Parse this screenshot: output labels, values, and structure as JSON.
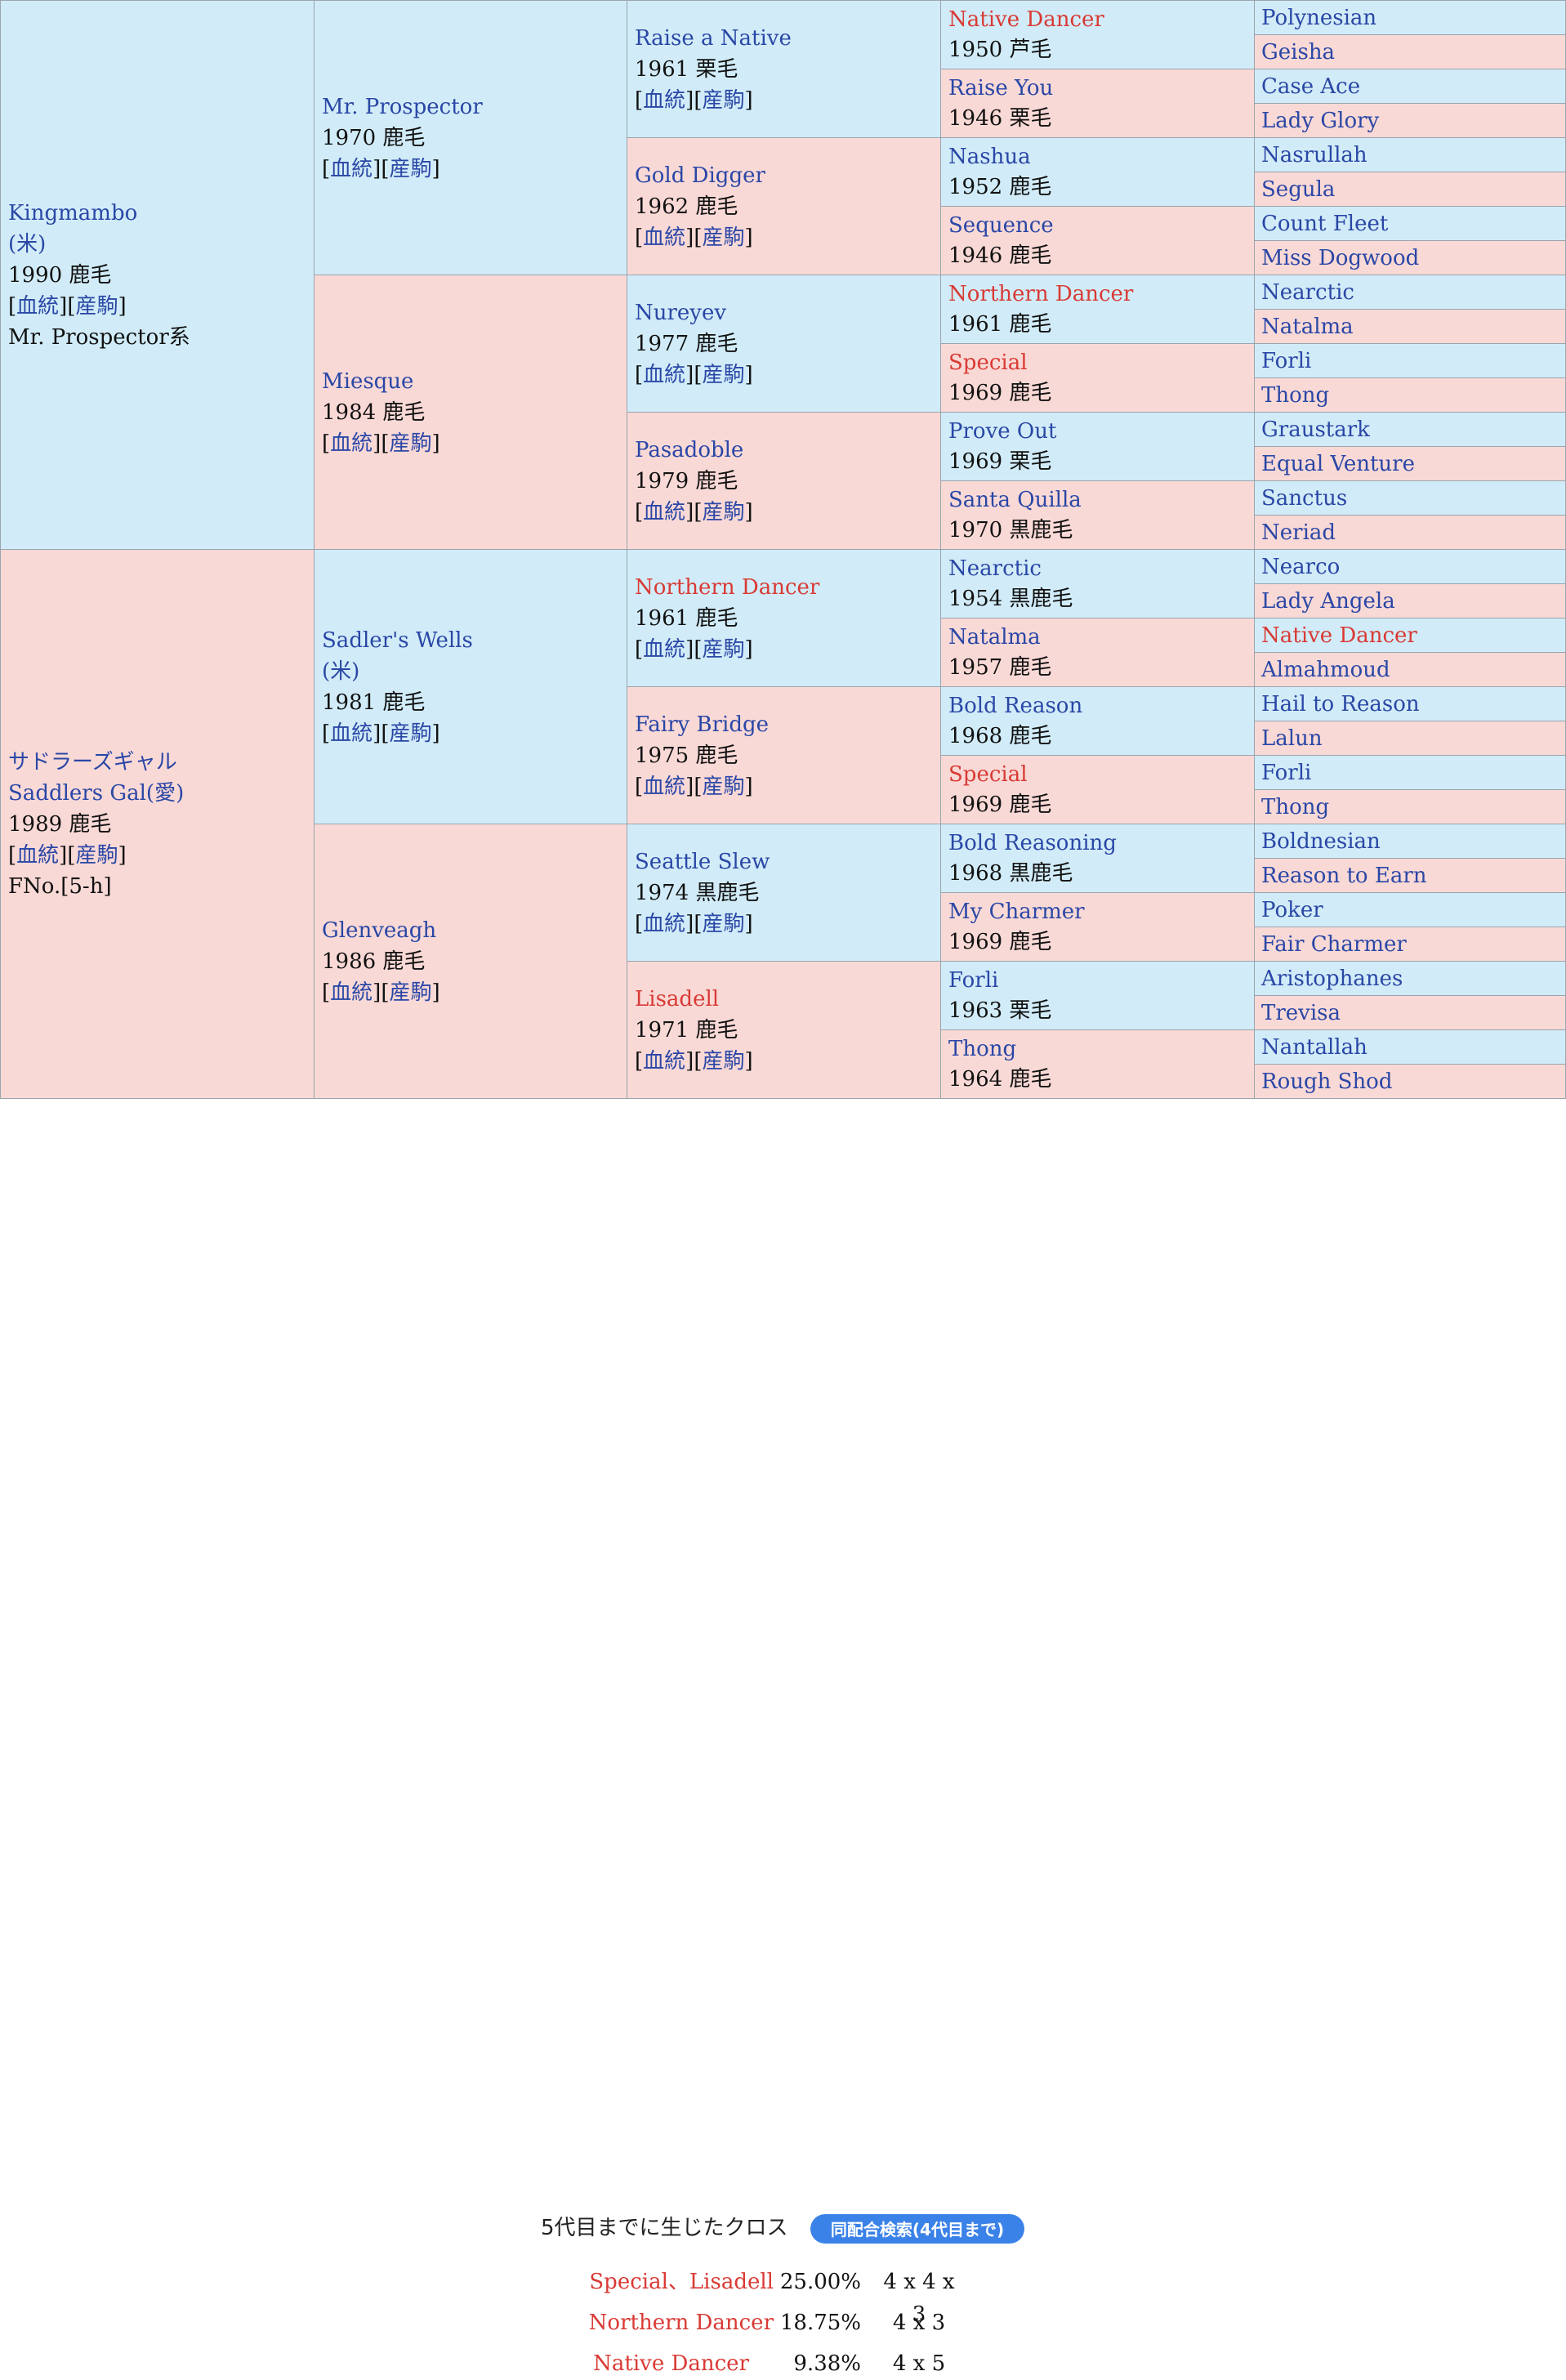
{
  "gen1": [
    {
      "name_lines": [
        "Kingmambo",
        "(米)"
      ],
      "year_color": "1990 鹿毛",
      "links": [
        "血統",
        "産駒"
      ],
      "extra": "Mr. Prospector系"
    },
    {
      "name_lines": [
        "サドラーズギャル",
        "Saddlers Gal(愛)"
      ],
      "year_color": "1989 鹿毛",
      "links": [
        "血統",
        "産駒"
      ],
      "extra": "FNo.[5-h]"
    }
  ],
  "gen2": [
    {
      "name_lines": [
        "Mr. Prospector"
      ],
      "year_color": "1970 鹿毛",
      "links": [
        "血統",
        "産駒"
      ]
    },
    {
      "name_lines": [
        "Miesque"
      ],
      "year_color": "1984 鹿毛",
      "links": [
        "血統",
        "産駒"
      ]
    },
    {
      "name_lines": [
        "Sadler's Wells",
        "(米)"
      ],
      "year_color": "1981 鹿毛",
      "links": [
        "血統",
        "産駒"
      ]
    },
    {
      "name_lines": [
        "Glenveagh"
      ],
      "year_color": "1986 鹿毛",
      "links": [
        "血統",
        "産駒"
      ]
    }
  ],
  "gen3": [
    {
      "name": "Raise a Native",
      "year_color": "1961 栗毛",
      "links": [
        "血統",
        "産駒"
      ],
      "cross": false
    },
    {
      "name": "Gold Digger",
      "year_color": "1962 鹿毛",
      "links": [
        "血統",
        "産駒"
      ],
      "cross": false
    },
    {
      "name": "Nureyev",
      "year_color": "1977 鹿毛",
      "links": [
        "血統",
        "産駒"
      ],
      "cross": false
    },
    {
      "name": "Pasadoble",
      "year_color": "1979 鹿毛",
      "links": [
        "血統",
        "産駒"
      ],
      "cross": false
    },
    {
      "name": "Northern Dancer",
      "year_color": "1961 鹿毛",
      "links": [
        "血統",
        "産駒"
      ],
      "cross": true
    },
    {
      "name": "Fairy Bridge",
      "year_color": "1975 鹿毛",
      "links": [
        "血統",
        "産駒"
      ],
      "cross": false
    },
    {
      "name": "Seattle Slew",
      "year_color": "1974 黒鹿毛",
      "links": [
        "血統",
        "産駒"
      ],
      "cross": false
    },
    {
      "name": "Lisadell",
      "year_color": "1971 鹿毛",
      "links": [
        "血統",
        "産駒"
      ],
      "cross": true
    }
  ],
  "gen4": [
    {
      "name": "Native Dancer",
      "year_color": "1950 芦毛",
      "cross": true
    },
    {
      "name": "Raise You",
      "year_color": "1946 栗毛",
      "cross": false
    },
    {
      "name": "Nashua",
      "year_color": "1952 鹿毛",
      "cross": false
    },
    {
      "name": "Sequence",
      "year_color": "1946 鹿毛",
      "cross": false
    },
    {
      "name": "Northern Dancer",
      "year_color": "1961 鹿毛",
      "cross": true
    },
    {
      "name": "Special",
      "year_color": "1969 鹿毛",
      "cross": true
    },
    {
      "name": "Prove Out",
      "year_color": "1969 栗毛",
      "cross": false
    },
    {
      "name": "Santa Quilla",
      "year_color": "1970 黒鹿毛",
      "cross": false
    },
    {
      "name": "Nearctic",
      "year_color": "1954 黒鹿毛",
      "cross": false
    },
    {
      "name": "Natalma",
      "year_color": "1957 鹿毛",
      "cross": false
    },
    {
      "name": "Bold Reason",
      "year_color": "1968 鹿毛",
      "cross": false
    },
    {
      "name": "Special",
      "year_color": "1969 鹿毛",
      "cross": true
    },
    {
      "name": "Bold Reasoning",
      "year_color": "1968 黒鹿毛",
      "cross": false
    },
    {
      "name": "My Charmer",
      "year_color": "1969 鹿毛",
      "cross": false
    },
    {
      "name": "Forli",
      "year_color": "1963 栗毛",
      "cross": false
    },
    {
      "name": "Thong",
      "year_color": "1964 鹿毛",
      "cross": false
    }
  ],
  "gen5": [
    {
      "name": "Polynesian",
      "cross": false
    },
    {
      "name": "Geisha",
      "cross": false
    },
    {
      "name": "Case Ace",
      "cross": false
    },
    {
      "name": "Lady Glory",
      "cross": false
    },
    {
      "name": "Nasrullah",
      "cross": false
    },
    {
      "name": "Segula",
      "cross": false
    },
    {
      "name": "Count Fleet",
      "cross": false
    },
    {
      "name": "Miss Dogwood",
      "cross": false
    },
    {
      "name": "Nearctic",
      "cross": false
    },
    {
      "name": "Natalma",
      "cross": false
    },
    {
      "name": "Forli",
      "cross": false
    },
    {
      "name": "Thong",
      "cross": false
    },
    {
      "name": "Graustark",
      "cross": false
    },
    {
      "name": "Equal Venture",
      "cross": false
    },
    {
      "name": "Sanctus",
      "cross": false
    },
    {
      "name": "Neriad",
      "cross": false
    },
    {
      "name": "Nearco",
      "cross": false
    },
    {
      "name": "Lady Angela",
      "cross": false
    },
    {
      "name": "Native Dancer",
      "cross": true
    },
    {
      "name": "Almahmoud",
      "cross": false
    },
    {
      "name": "Hail to Reason",
      "cross": false
    },
    {
      "name": "Lalun",
      "cross": false
    },
    {
      "name": "Forli",
      "cross": false
    },
    {
      "name": "Thong",
      "cross": false
    },
    {
      "name": "Boldnesian",
      "cross": false
    },
    {
      "name": "Reason to Earn",
      "cross": false
    },
    {
      "name": "Poker",
      "cross": false
    },
    {
      "name": "Fair Charmer",
      "cross": false
    },
    {
      "name": "Aristophanes",
      "cross": false
    },
    {
      "name": "Trevisa",
      "cross": false
    },
    {
      "name": "Nantallah",
      "cross": false
    },
    {
      "name": "Rough Shod",
      "cross": false
    }
  ],
  "crosses": {
    "title": "5代目までに生じたクロス",
    "search_button": "同配合検索(4代目まで)",
    "rows": [
      {
        "name": "Special、Lisadell",
        "percent": "25.00%",
        "gens": "4 x 4 x 3"
      },
      {
        "name": "Northern Dancer",
        "percent": "18.75%",
        "gens": "4 x 3"
      },
      {
        "name": "Native Dancer",
        "percent": "9.38%",
        "gens": "4 x 5"
      }
    ]
  }
}
